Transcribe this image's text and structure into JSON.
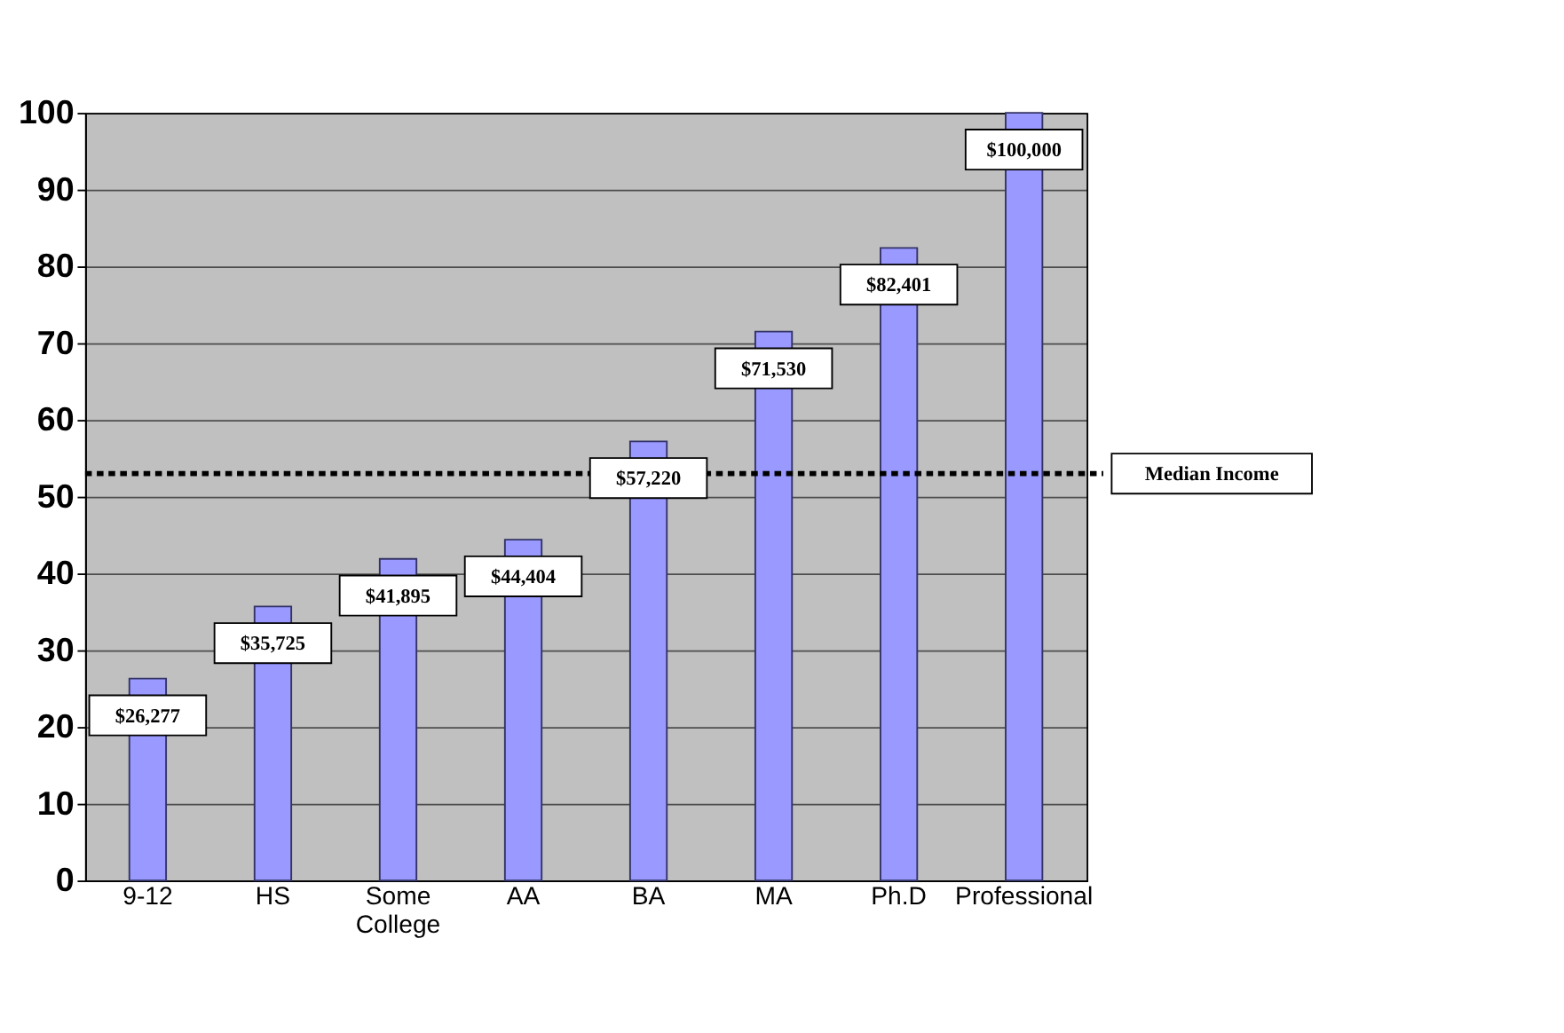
{
  "chart_data": {
    "type": "bar",
    "categories": [
      "9-12",
      "HS",
      "Some College",
      "AA",
      "BA",
      "MA",
      "Ph.D",
      "Professional"
    ],
    "values": [
      26.3,
      35.7,
      41.9,
      44.4,
      57.2,
      71.5,
      82.4,
      100
    ],
    "annotations": [
      {
        "text": "$26,277",
        "x": "9-12",
        "y": 26.3
      },
      {
        "text": "$35,725",
        "x": "HS",
        "y": 35.7
      },
      {
        "text": "$41,895",
        "x": "Some College",
        "y": 41.9
      },
      {
        "text": "$44,404",
        "x": "AA",
        "y": 44.4
      },
      {
        "text": "$57,220",
        "x": "BA",
        "y": 57.2
      },
      {
        "text": "$71,530",
        "x": "MA",
        "y": 71.5
      },
      {
        "text": "$82,401",
        "x": "Ph.D",
        "y": 82.4
      },
      {
        "text": "$100,000",
        "x": "Professional",
        "y": 100
      }
    ],
    "color": "#9999ff",
    "ylim": [
      0,
      100
    ],
    "yticks": [
      0,
      10,
      20,
      30,
      40,
      50,
      60,
      70,
      80,
      90,
      100
    ],
    "grid": "y",
    "ref_lines": [
      {
        "axis": "y",
        "value": 53,
        "label": "Median Income",
        "color": "#000000",
        "line_style": "dotted"
      }
    ]
  }
}
